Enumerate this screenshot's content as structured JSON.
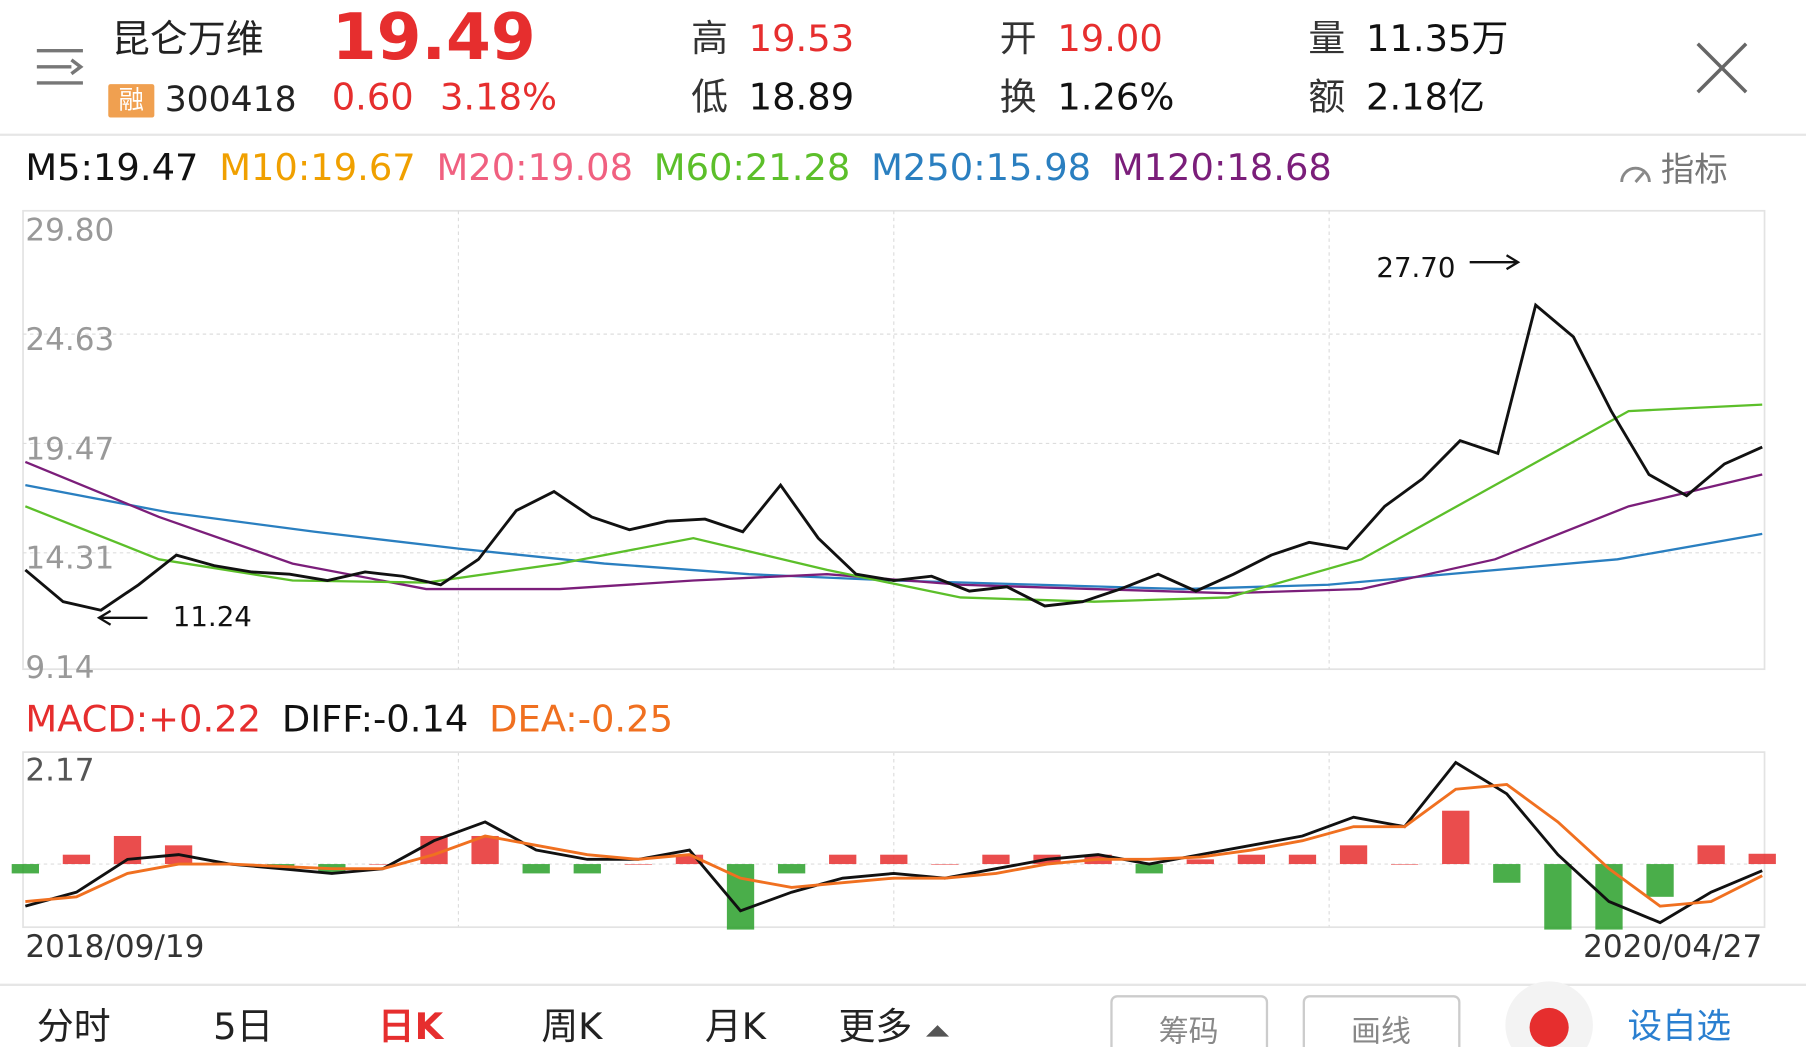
{
  "header": {
    "name": "昆仑万维",
    "badge": "融",
    "code": "300418",
    "price": "19.49",
    "change": "0.60",
    "change_pct": "3.18%",
    "stats": [
      {
        "label": "高",
        "value": "19.53",
        "color": "#e62e2e"
      },
      {
        "label": "低",
        "value": "18.89",
        "color": "#111111"
      },
      {
        "label": "开",
        "value": "19.00",
        "color": "#e62e2e"
      },
      {
        "label": "换",
        "value": "1.26%",
        "color": "#111111"
      },
      {
        "label": "量",
        "value": "11.35万",
        "color": "#111111"
      },
      {
        "label": "额",
        "value": "2.18亿",
        "color": "#111111"
      }
    ]
  },
  "ma_legend": [
    {
      "text": "M5:19.47",
      "color": "#111111"
    },
    {
      "text": "M10:19.67",
      "color": "#f0a000"
    },
    {
      "text": "M20:19.08",
      "color": "#f06080"
    },
    {
      "text": "M60:21.28",
      "color": "#5cbf2a"
    },
    {
      "text": "M250:15.98",
      "color": "#2a7fc0"
    },
    {
      "text": "M120:18.68",
      "color": "#7b1e7a"
    }
  ],
  "indicator_button": "指标",
  "macd_legend": [
    {
      "text": "MACD:+0.22",
      "color": "#e62e2e"
    },
    {
      "text": "DIFF:-0.14",
      "color": "#111111"
    },
    {
      "text": "DEA:-0.25",
      "color": "#f07020"
    }
  ],
  "chart_data": [
    {
      "type": "line",
      "ylim": [
        9.14,
        29.8
      ],
      "yticks": [
        {
          "value": 29.8,
          "label": "29.80"
        },
        24.63,
        19.47,
        14.31,
        9.14
      ],
      "grid": true,
      "annotations": [
        {
          "text": "27.70",
          "value": 27.7
        },
        {
          "text": "11.24",
          "value": 11.24
        }
      ],
      "series": [
        {
          "color": "#2a7fc0",
          "values": [
            17.5,
            16.2,
            15.3,
            14.5,
            13.8,
            13.3,
            13.0,
            12.8,
            12.6,
            12.8,
            13.4,
            14.0,
            15.2
          ]
        },
        {
          "color": "#7b1e7a",
          "values": [
            18.6,
            16.0,
            13.8,
            12.6,
            12.6,
            13.0,
            13.3,
            12.8,
            12.6,
            12.4,
            12.6,
            14.0,
            16.5,
            18.0
          ]
        },
        {
          "color": "#5cbf2a",
          "values": [
            16.5,
            14.0,
            13.0,
            12.9,
            13.8,
            15.0,
            13.5,
            12.2,
            12.0,
            12.2,
            14.0,
            17.5,
            21.0,
            21.3
          ]
        },
        {
          "color": "#111111",
          "values": [
            13.5,
            12.0,
            11.6,
            12.8,
            14.2,
            13.7,
            13.4,
            13.3,
            13.0,
            13.4,
            13.2,
            12.8,
            14.0,
            16.3,
            17.2,
            16.0,
            15.4,
            15.8,
            15.9,
            15.3,
            17.5,
            15.0,
            13.3,
            13.0,
            13.2,
            12.5,
            12.7,
            11.8,
            12.0,
            12.6,
            13.3,
            12.5,
            13.3,
            14.2,
            14.8,
            14.5,
            16.5,
            17.8,
            19.6,
            19.0,
            26.0,
            24.5,
            21.0,
            18.0,
            17.0,
            18.5,
            19.3
          ]
        }
      ]
    },
    {
      "type": "macd",
      "ylim": [
        -1.3,
        2.17
      ],
      "yticks": [
        2.17
      ],
      "x_labels": [
        "2018/09/19",
        "2020/04/27"
      ],
      "colors": {
        "up": "#e62e2e",
        "down": "#2aa02a"
      },
      "series": [
        {
          "color": "#111111",
          "values": [
            -0.9,
            -0.6,
            0.1,
            0.2,
            0.0,
            -0.1,
            -0.2,
            -0.1,
            0.5,
            0.9,
            0.3,
            0.1,
            0.1,
            0.3,
            -1.0,
            -0.6,
            -0.3,
            -0.2,
            -0.3,
            -0.1,
            0.1,
            0.2,
            0.0,
            0.2,
            0.4,
            0.6,
            1.0,
            0.8,
            2.17,
            1.5,
            0.2,
            -0.8,
            -1.25,
            -0.6,
            -0.14
          ]
        },
        {
          "color": "#f07020",
          "values": [
            -0.8,
            -0.7,
            -0.2,
            0.0,
            0.0,
            -0.05,
            -0.1,
            -0.1,
            0.2,
            0.6,
            0.4,
            0.2,
            0.1,
            0.2,
            -0.3,
            -0.5,
            -0.4,
            -0.3,
            -0.3,
            -0.2,
            0.0,
            0.1,
            0.1,
            0.15,
            0.3,
            0.5,
            0.8,
            0.8,
            1.6,
            1.7,
            0.9,
            -0.1,
            -0.9,
            -0.8,
            -0.25
          ]
        }
      ],
      "histogram": [
        -0.2,
        0.2,
        0.6,
        0.4,
        0,
        -0.1,
        -0.2,
        0,
        0.6,
        0.6,
        -0.2,
        -0.2,
        0,
        0.2,
        -1.4,
        -0.2,
        0.2,
        0.2,
        0,
        0.2,
        0.2,
        0.2,
        -0.2,
        0.1,
        0.2,
        0.2,
        0.4,
        0,
        1.14,
        -0.4,
        -1.4,
        -1.4,
        -0.7,
        0.4,
        0.22
      ]
    }
  ],
  "tabs": [
    {
      "text": "分时",
      "active": false
    },
    {
      "text": "5日",
      "active": false
    },
    {
      "text": "日K",
      "active": true
    },
    {
      "text": "周K",
      "active": false
    },
    {
      "text": "月K",
      "active": false
    },
    {
      "text": "更多",
      "active": false
    }
  ],
  "buttons": [
    "筹码",
    "画线"
  ],
  "add_watchlist": "设自选"
}
